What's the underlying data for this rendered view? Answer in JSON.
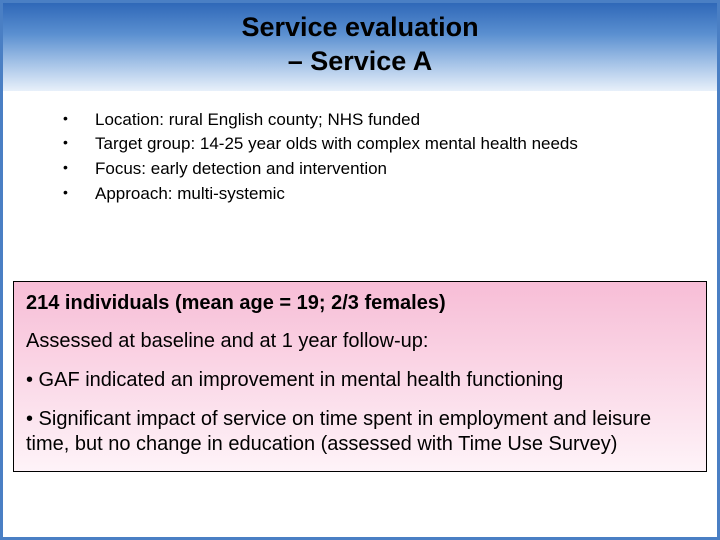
{
  "title": {
    "line1": "Service evaluation",
    "line2": "– Service A"
  },
  "bullets": [
    "Location: rural English county; NHS funded",
    "Target group: 14-25 year olds with complex mental health needs",
    "Focus: early detection and intervention",
    "Approach: multi-systemic"
  ],
  "findings": {
    "heading": "214 individuals (mean age = 19; 2/3 females)",
    "intro": "Assessed at baseline and at 1 year follow-up:",
    "points": [
      "• GAF indicated an improvement in mental health functioning",
      "• Significant impact of service on time spent in employment and leisure time, but no change in education (assessed with Time Use Survey)"
    ]
  },
  "colors": {
    "border": "#4a7fc4",
    "title_gradient_top": "#2f68b8",
    "title_gradient_bottom": "#e8f0fa",
    "findings_gradient_top": "#f7bdd6",
    "findings_gradient_bottom": "#fef3f8",
    "text": "#000000"
  }
}
